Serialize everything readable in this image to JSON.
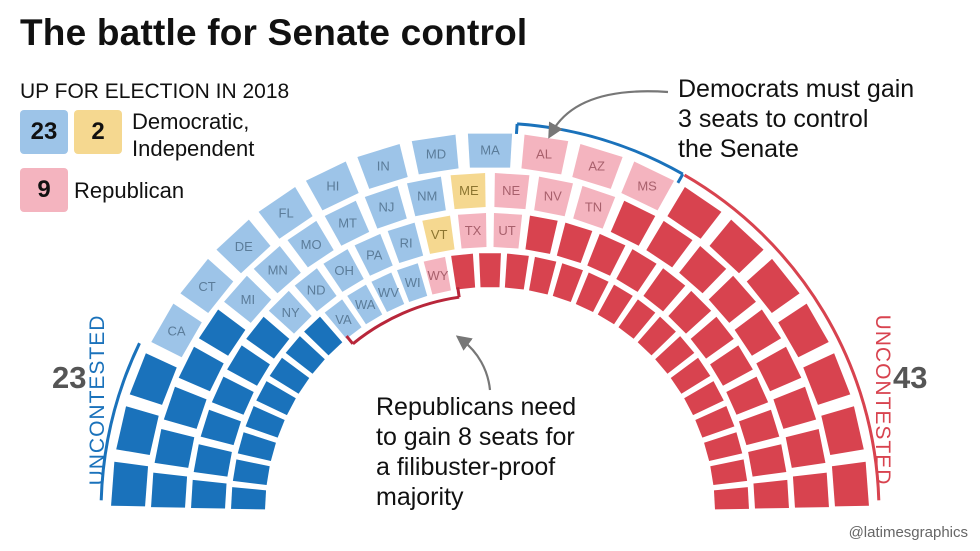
{
  "title": "The battle for Senate control",
  "subtitle": "UP FOR ELECTION IN 2018",
  "legend": [
    {
      "count": "23",
      "color": "#9dc4e8",
      "label_lines": [
        "Democratic,",
        "Independent"
      ]
    },
    {
      "count": "2",
      "color": "#f5d890",
      "label_lines": []
    },
    {
      "count": "9",
      "color": "#f4b4bf",
      "label_lines": [
        "Republican"
      ]
    }
  ],
  "annotations": {
    "top_right": [
      "Democrats must gain",
      "3 seats to control",
      "the Senate"
    ],
    "bottom": [
      "Republicans need",
      "to gain 8 seats for",
      "a filibuster-proof",
      "majority"
    ]
  },
  "side_labels": {
    "left_count": "23",
    "right_count": "43",
    "left_label": "UNCONTESTED",
    "right_label": "UNCONTESTED"
  },
  "credit": "@latimesgraphics",
  "colors": {
    "dem_uncontested": "#1a72bb",
    "dem_up": "#9dc4e8",
    "ind_up": "#f5d890",
    "rep_up": "#f4b4bf",
    "rep_uncontested": "#d8434f",
    "up_label_dem": "#5b7c99",
    "up_label_ind": "#8c7530",
    "up_label_rep": "#a8606c",
    "bracket_dem": "#1a72bb",
    "bracket_rep": "#b8263a",
    "arrow": "#777777"
  },
  "chart_data": {
    "type": "parliament",
    "total_seats": 100,
    "rows": 4,
    "seats_by_row": [
      21,
      24,
      26,
      29
    ],
    "groups": [
      {
        "name": "Democratic, Independent",
        "status": "uncontested",
        "seats": 23
      },
      {
        "name": "Democratic",
        "status": "up for election",
        "seats": 23,
        "states": [
          "CA",
          "CT",
          "DE",
          "FL",
          "HI",
          "IN",
          "MD",
          "MA",
          "MI",
          "MN",
          "MO",
          "MT",
          "NJ",
          "NM",
          "NY",
          "ND",
          "OH",
          "PA",
          "RI",
          "VA",
          "WA",
          "WV",
          "WI"
        ]
      },
      {
        "name": "Independent",
        "status": "up for election",
        "seats": 2,
        "states": [
          "ME",
          "VT"
        ]
      },
      {
        "name": "Republican",
        "status": "up for election",
        "seats": 9,
        "states": [
          "AL",
          "AZ",
          "MS",
          "NE",
          "NV",
          "TN",
          "TX",
          "UT",
          "WY"
        ]
      },
      {
        "name": "Republican",
        "status": "uncontested",
        "seats": 43
      }
    ],
    "rings": [
      [
        "CA",
        "CT",
        "DE",
        "FL",
        "HI",
        "IN",
        "MD",
        "MA",
        "AL",
        "AZ",
        "MS"
      ],
      [
        "MI",
        "MN",
        "MO",
        "MT",
        "NJ",
        "NM",
        "ME",
        "NE",
        "NV",
        "TN"
      ],
      [
        "NY",
        "ND",
        "OH",
        "PA",
        "RI",
        "VT",
        "TX",
        "UT"
      ],
      [
        "VA",
        "WA",
        "WV",
        "WI",
        "WY"
      ]
    ]
  }
}
